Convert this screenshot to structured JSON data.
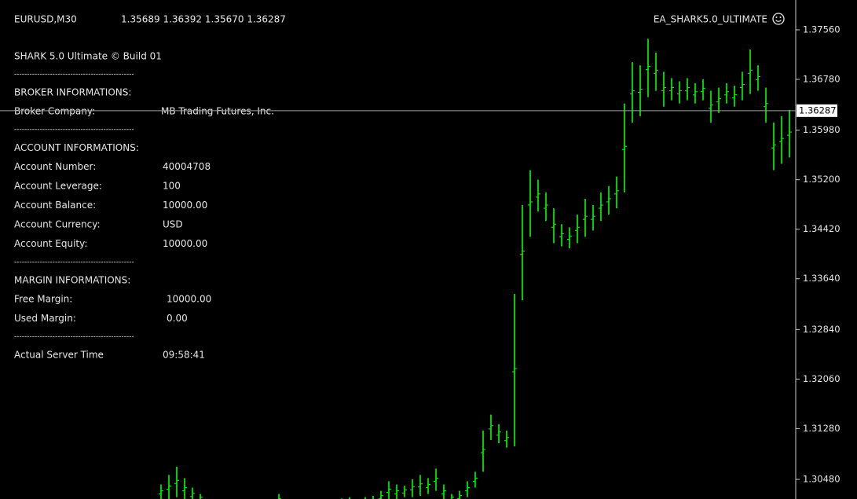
{
  "header": {
    "symbol": "EURUSD,M30",
    "quote": "1.35689 1.36392 1.35670 1.36287",
    "expert": "EA_SHARK5.0_ULTIMATE"
  },
  "panel": {
    "title": "SHARK 5.0 Ultimate © Build 01",
    "separator": "-----------------------------------------------",
    "sections": [
      {
        "heading": "BROKER INFORMATIONS:",
        "rows": [
          [
            "Broker Company:",
            "MB Trading Futures, Inc."
          ]
        ]
      },
      {
        "heading": "ACCOUNT INFORMATIONS:",
        "rows": [
          [
            "Account Number:",
            "40004708"
          ],
          [
            "Account Leverage:",
            "100"
          ],
          [
            "Account Balance:",
            "10000.00"
          ],
          [
            "Account Currency:",
            "USD"
          ],
          [
            "Account Equity:",
            "10000.00"
          ]
        ]
      },
      {
        "heading": "MARGIN INFORMATIONS:",
        "rows": [
          [
            "Free Margin:",
            "10000.00"
          ],
          [
            "Used Margin:",
            "0.00"
          ]
        ]
      },
      {
        "heading": null,
        "rows": [
          [
            "Actual Server Time",
            "09:58:41"
          ]
        ]
      }
    ]
  },
  "chart_data": {
    "type": "ohlc-bars",
    "color": "#00ff00",
    "ylim": [
      1.30171,
      1.3803
    ],
    "yticks": [
      {
        "value": 1.3756,
        "label": "1.37560"
      },
      {
        "value": 1.3678,
        "label": "1.36780"
      },
      {
        "value": 1.3598,
        "label": "1.35980"
      },
      {
        "value": 1.352,
        "label": "1.35200"
      },
      {
        "value": 1.3442,
        "label": "1.34420"
      },
      {
        "value": 1.3364,
        "label": "1.33640"
      },
      {
        "value": 1.3284,
        "label": "1.32840"
      },
      {
        "value": 1.3206,
        "label": "1.32060"
      },
      {
        "value": 1.3128,
        "label": "1.31280"
      },
      {
        "value": 1.3048,
        "label": "1.30480"
      }
    ],
    "current_price": {
      "value": 1.36287,
      "label": "1.36287"
    },
    "bars": [
      [
        1.3015,
        1.304
      ],
      [
        1.3015,
        1.3055
      ],
      [
        1.302,
        1.3068
      ],
      [
        1.3015,
        1.305
      ],
      [
        1.3012,
        1.3035
      ],
      [
        1.301,
        1.3025
      ],
      [
        1.3,
        1.3015
      ],
      [
        1.299,
        1.301
      ],
      [
        1.2992,
        1.3012
      ],
      [
        1.299,
        1.3008
      ],
      [
        1.2988,
        1.301
      ],
      [
        1.299,
        1.3012
      ],
      [
        1.2992,
        1.301
      ],
      [
        1.299,
        1.3008
      ],
      [
        1.2995,
        1.3012
      ],
      [
        1.3005,
        1.3025
      ],
      [
        1.2995,
        1.3015
      ],
      [
        1.2997,
        1.3012
      ],
      [
        1.2995,
        1.3014
      ],
      [
        1.2996,
        1.3015
      ],
      [
        1.2998,
        1.3016
      ],
      [
        1.2995,
        1.3013
      ],
      [
        1.2997,
        1.3017
      ],
      [
        1.2998,
        1.3018
      ],
      [
        1.3,
        1.302
      ],
      [
        1.2998,
        1.3016
      ],
      [
        1.3,
        1.302
      ],
      [
        1.3002,
        1.3022
      ],
      [
        1.301,
        1.303
      ],
      [
        1.3015,
        1.3045
      ],
      [
        1.3015,
        1.304
      ],
      [
        1.302,
        1.3038
      ],
      [
        1.302,
        1.3048
      ],
      [
        1.3022,
        1.3055
      ],
      [
        1.3025,
        1.305
      ],
      [
        1.303,
        1.3065
      ],
      [
        1.3015,
        1.304
      ],
      [
        1.301,
        1.3025
      ],
      [
        1.301,
        1.303
      ],
      [
        1.302,
        1.3045
      ],
      [
        1.3035,
        1.306
      ],
      [
        1.306,
        1.3125
      ],
      [
        1.311,
        1.315
      ],
      [
        1.3105,
        1.3135
      ],
      [
        1.3098,
        1.3125
      ],
      [
        1.31,
        1.334
      ],
      [
        1.333,
        1.348
      ],
      [
        1.343,
        1.3535
      ],
      [
        1.347,
        1.352
      ],
      [
        1.3455,
        1.35
      ],
      [
        1.342,
        1.3475
      ],
      [
        1.3415,
        1.345
      ],
      [
        1.3412,
        1.3445
      ],
      [
        1.342,
        1.3465
      ],
      [
        1.343,
        1.349
      ],
      [
        1.344,
        1.348
      ],
      [
        1.3455,
        1.35
      ],
      [
        1.3465,
        1.351
      ],
      [
        1.3475,
        1.3525
      ],
      [
        1.35,
        1.364
      ],
      [
        1.361,
        1.3705
      ],
      [
        1.362,
        1.37
      ],
      [
        1.365,
        1.3742
      ],
      [
        1.366,
        1.372
      ],
      [
        1.3635,
        1.369
      ],
      [
        1.3645,
        1.368
      ],
      [
        1.364,
        1.3675
      ],
      [
        1.3645,
        1.368
      ],
      [
        1.364,
        1.3672
      ],
      [
        1.3645,
        1.3678
      ],
      [
        1.361,
        1.366
      ],
      [
        1.3625,
        1.3665
      ],
      [
        1.364,
        1.3672
      ],
      [
        1.3635,
        1.3668
      ],
      [
        1.3645,
        1.369
      ],
      [
        1.3655,
        1.3725
      ],
      [
        1.366,
        1.37
      ],
      [
        1.361,
        1.3665
      ],
      [
        1.3535,
        1.361
      ],
      [
        1.3545,
        1.362
      ],
      [
        1.3555,
        1.363
      ]
    ]
  }
}
